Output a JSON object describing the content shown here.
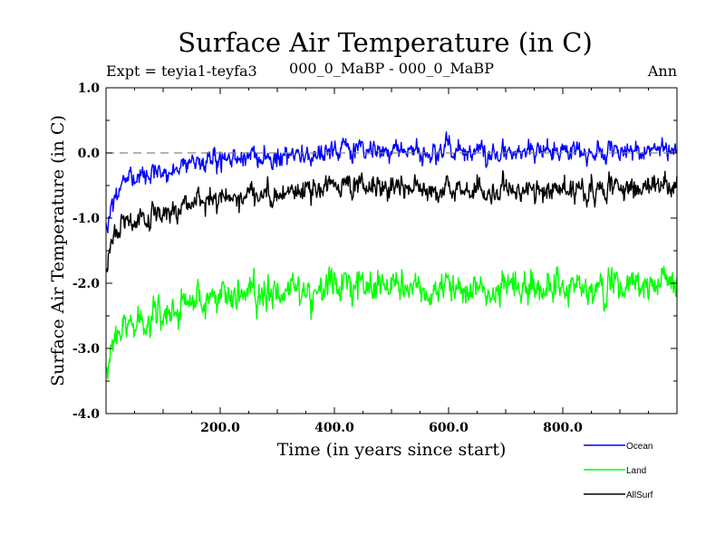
{
  "chart_data": {
    "type": "line",
    "title": "Surface Air Temperature (in C)",
    "subtitle_left": "Expt = teyia1-teyfa3",
    "subtitle_center": "000_0_MaBP - 000_0_MaBP",
    "subtitle_right": "Ann",
    "xlabel": "Time (in years since start)",
    "ylabel": "Surface Air Temperature (in C)",
    "xlim": [
      0,
      1000
    ],
    "ylim": [
      -4.0,
      1.0
    ],
    "x_ticks": [
      {
        "value": 200,
        "label": "200.0"
      },
      {
        "value": 400,
        "label": "400.0"
      },
      {
        "value": 600,
        "label": "600.0"
      },
      {
        "value": 800,
        "label": "800.0"
      }
    ],
    "y_ticks": [
      {
        "value": 1.0,
        "label": "1.0"
      },
      {
        "value": 0.0,
        "label": "0.0"
      },
      {
        "value": -1.0,
        "label": "-1.0"
      },
      {
        "value": -2.0,
        "label": "-2.0"
      },
      {
        "value": -3.0,
        "label": "-3.0"
      },
      {
        "value": -4.0,
        "label": "-4.0"
      }
    ],
    "reference_line": 0.0,
    "x_step": 1,
    "series": [
      {
        "name": "Ocean",
        "color": "#0000ff",
        "trend_x": [
          0,
          10,
          30,
          60,
          100,
          150,
          200,
          300,
          400,
          500,
          600,
          700,
          800,
          900,
          1000
        ],
        "trend_y": [
          -1.2,
          -0.8,
          -0.45,
          -0.35,
          -0.3,
          -0.15,
          -0.08,
          -0.05,
          0.05,
          0.02,
          0.05,
          0.0,
          0.02,
          0.02,
          0.05
        ],
        "noise": 0.09
      },
      {
        "name": "Land",
        "color": "#00ff00",
        "trend_x": [
          0,
          10,
          30,
          60,
          100,
          150,
          200,
          300,
          400,
          500,
          600,
          700,
          800,
          900,
          1000
        ],
        "trend_y": [
          -3.5,
          -2.9,
          -2.65,
          -2.55,
          -2.45,
          -2.3,
          -2.2,
          -2.15,
          -2.0,
          -2.05,
          -2.05,
          -2.1,
          -2.1,
          -2.05,
          -2.0
        ],
        "noise": 0.14
      },
      {
        "name": "AllSurf",
        "color": "#000000",
        "trend_x": [
          0,
          10,
          30,
          60,
          100,
          150,
          200,
          300,
          400,
          500,
          600,
          700,
          800,
          900,
          1000
        ],
        "trend_y": [
          -1.85,
          -1.35,
          -1.05,
          -1.0,
          -0.95,
          -0.78,
          -0.7,
          -0.65,
          -0.5,
          -0.55,
          -0.55,
          -0.6,
          -0.58,
          -0.55,
          -0.5
        ],
        "noise": 0.1
      }
    ]
  }
}
